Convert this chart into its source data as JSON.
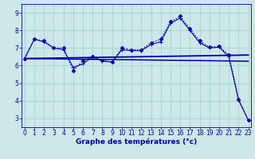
{
  "xlim": [
    -0.3,
    23.3
  ],
  "ylim": [
    2.5,
    9.5
  ],
  "x_ticks": [
    0,
    1,
    2,
    3,
    4,
    5,
    6,
    7,
    8,
    9,
    10,
    11,
    12,
    13,
    14,
    15,
    16,
    17,
    18,
    19,
    20,
    21,
    22,
    23
  ],
  "yticks": [
    3,
    4,
    5,
    6,
    7,
    8,
    9
  ],
  "xlabel": "Graphe des températures (°c)",
  "background_color": "#cce8e8",
  "grid_color": "#aad0d0",
  "line_color": "#0000aa",
  "ys1": [
    6.4,
    7.5,
    7.4,
    7.0,
    7.0,
    5.7,
    6.3,
    6.5,
    6.3,
    6.2,
    7.0,
    6.9,
    6.9,
    7.3,
    7.5,
    8.5,
    8.8,
    8.1,
    7.4,
    7.05,
    7.1,
    6.6,
    4.1,
    2.9
  ],
  "ys2": [
    6.4,
    7.5,
    7.35,
    7.0,
    6.9,
    5.9,
    6.1,
    6.5,
    6.25,
    6.2,
    6.9,
    6.85,
    6.85,
    7.2,
    7.35,
    8.4,
    8.7,
    8.0,
    7.3,
    7.0,
    7.05,
    6.5,
    4.05,
    2.9
  ],
  "line3": {
    "x": [
      0,
      23
    ],
    "y": [
      6.4,
      6.6
    ]
  },
  "line4": {
    "x": [
      0,
      23
    ],
    "y": [
      6.4,
      6.25
    ]
  },
  "tick_fontsize": 5.5,
  "xlabel_fontsize": 6.5
}
